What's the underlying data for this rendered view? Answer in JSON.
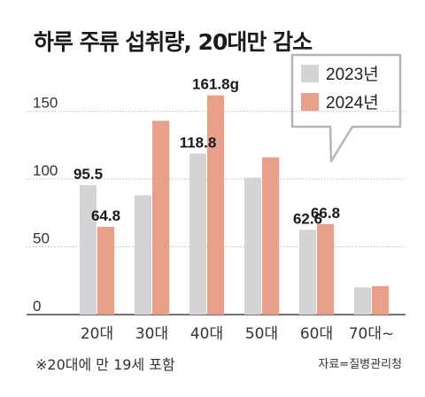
{
  "title": "하루 주류 섭취량, 20대만 감소",
  "note": "※20대에 만 19세 포함",
  "source": "자료=질병관리청",
  "colors": {
    "series_2023": "#d4d4d4",
    "series_2024": "#e8a08a",
    "grid": "#bbbbbb",
    "axis": "#444444"
  },
  "chart_data": {
    "type": "bar",
    "categories": [
      "20대",
      "30대",
      "40대",
      "50대",
      "60대",
      "70대~"
    ],
    "yticks": [
      "0",
      "50",
      "100",
      "150"
    ],
    "ylim": [
      0,
      170
    ],
    "series": [
      {
        "name": "2023년",
        "values": [
          95.5,
          88,
          118.8,
          101,
          62.6,
          20
        ]
      },
      {
        "name": "2024년",
        "values": [
          64.8,
          143,
          161.8,
          116,
          66.8,
          21
        ]
      }
    ],
    "data_labels": [
      {
        "series": 0,
        "index": 0,
        "text": "95.5"
      },
      {
        "series": 1,
        "index": 0,
        "text": "64.8"
      },
      {
        "series": 0,
        "index": 2,
        "text": "118.8"
      },
      {
        "series": 1,
        "index": 2,
        "text": "161.8g"
      },
      {
        "series": 0,
        "index": 4,
        "text": "62.6"
      },
      {
        "series": 1,
        "index": 4,
        "text": "66.8"
      }
    ],
    "legend_position": "top-right"
  }
}
